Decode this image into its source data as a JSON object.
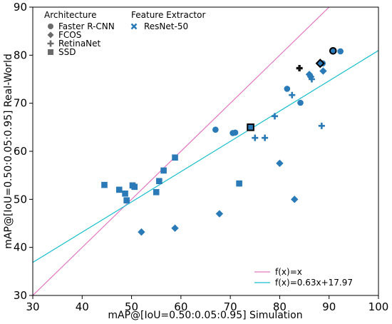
{
  "chart_data": {
    "type": "scatter",
    "xlabel": "mAP@[IoU=0.50:0.05:0.95] Simulation",
    "ylabel": "mAP@[IoU=0.50:0.05:0.95] Real-World",
    "xlim": [
      30,
      100
    ],
    "ylim": [
      30,
      90
    ],
    "xticks": [
      "30",
      "40",
      "50",
      "60",
      "70",
      "80",
      "90",
      "100"
    ],
    "yticks": [
      "30",
      "40",
      "50",
      "60",
      "70",
      "80",
      "90"
    ],
    "grid": false,
    "marker_color": "#2a7ab8",
    "legend": {
      "placement": "top-left",
      "architecture_title": "Architecture",
      "architecture": [
        {
          "label": "Faster R-CNN",
          "marker": "circle"
        },
        {
          "label": "FCOS",
          "marker": "diamond"
        },
        {
          "label": "RetinaNet",
          "marker": "plus"
        },
        {
          "label": "SSD",
          "marker": "square"
        }
      ],
      "feature_title": "Feature Extractor",
      "feature": [
        {
          "label": "ResNet-50",
          "marker": "x"
        }
      ]
    },
    "lines": [
      {
        "name": "f(x)=x",
        "slope": 1,
        "intercept": 0,
        "color": "#e377c2"
      },
      {
        "name": "f(x)=0.63x+17.97",
        "slope": 0.63,
        "intercept": 17.97,
        "color": "#17becf"
      }
    ],
    "points": [
      {
        "x": 67.0,
        "y": 64.5,
        "marker": "circle"
      },
      {
        "x": 70.5,
        "y": 63.8,
        "marker": "circle"
      },
      {
        "x": 71.0,
        "y": 63.9,
        "marker": "circle"
      },
      {
        "x": 81.5,
        "y": 73.0,
        "marker": "circle"
      },
      {
        "x": 84.2,
        "y": 70.1,
        "marker": "circle"
      },
      {
        "x": 88.7,
        "y": 78.3,
        "marker": "circle"
      },
      {
        "x": 92.3,
        "y": 80.8,
        "marker": "circle"
      },
      {
        "x": 90.8,
        "y": 80.9,
        "marker": "circle",
        "highlight": true
      },
      {
        "x": 52.0,
        "y": 43.2,
        "marker": "diamond"
      },
      {
        "x": 58.8,
        "y": 44.0,
        "marker": "diamond"
      },
      {
        "x": 67.8,
        "y": 47.0,
        "marker": "diamond"
      },
      {
        "x": 80.0,
        "y": 57.5,
        "marker": "diamond"
      },
      {
        "x": 83.0,
        "y": 50.0,
        "marker": "diamond"
      },
      {
        "x": 86.0,
        "y": 76.0,
        "marker": "diamond"
      },
      {
        "x": 86.3,
        "y": 75.5,
        "marker": "diamond"
      },
      {
        "x": 88.8,
        "y": 76.7,
        "marker": "diamond"
      },
      {
        "x": 88.2,
        "y": 78.3,
        "marker": "diamond",
        "highlight": true
      },
      {
        "x": 75.0,
        "y": 62.8,
        "marker": "plus"
      },
      {
        "x": 77.0,
        "y": 62.8,
        "marker": "plus"
      },
      {
        "x": 79.0,
        "y": 67.3,
        "marker": "plus"
      },
      {
        "x": 82.5,
        "y": 71.7,
        "marker": "plus"
      },
      {
        "x": 86.5,
        "y": 75.0,
        "marker": "plus"
      },
      {
        "x": 88.5,
        "y": 65.3,
        "marker": "plus"
      },
      {
        "x": 84.0,
        "y": 77.3,
        "marker": "plus",
        "highlight": true
      },
      {
        "x": 44.5,
        "y": 53.0,
        "marker": "square"
      },
      {
        "x": 47.5,
        "y": 52.0,
        "marker": "square"
      },
      {
        "x": 48.7,
        "y": 51.2,
        "marker": "square"
      },
      {
        "x": 49.0,
        "y": 49.8,
        "marker": "square"
      },
      {
        "x": 50.2,
        "y": 52.9,
        "marker": "square"
      },
      {
        "x": 50.6,
        "y": 52.6,
        "marker": "square"
      },
      {
        "x": 55.0,
        "y": 51.5,
        "marker": "square"
      },
      {
        "x": 55.6,
        "y": 53.8,
        "marker": "square"
      },
      {
        "x": 56.5,
        "y": 56.0,
        "marker": "square"
      },
      {
        "x": 58.8,
        "y": 58.7,
        "marker": "square"
      },
      {
        "x": 71.8,
        "y": 53.3,
        "marker": "square"
      },
      {
        "x": 74.1,
        "y": 65.0,
        "marker": "square",
        "highlight": true
      }
    ]
  }
}
